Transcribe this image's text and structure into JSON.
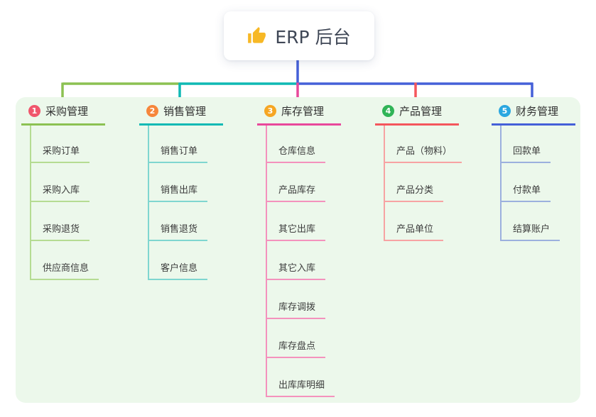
{
  "root": {
    "title": "ERP 后台",
    "icon": "thumbs-up-icon",
    "icon_color": "#f7b825",
    "stem_color": "#4560d8"
  },
  "panel": {
    "background": "#ecf8eb"
  },
  "branches": [
    {
      "number": "1",
      "title": "采购管理",
      "badge_color": "#f0566c",
      "line_color": "#8cc152",
      "child_line_color": "#b5dc92",
      "children": [
        "采购订单",
        "采购入库",
        "采购退货",
        "供应商信息"
      ]
    },
    {
      "number": "2",
      "title": "销售管理",
      "badge_color": "#f6863b",
      "line_color": "#0fb9b4",
      "child_line_color": "#7fd6d0",
      "children": [
        "销售订单",
        "销售出库",
        "销售退货",
        "客户信息"
      ]
    },
    {
      "number": "3",
      "title": "库存管理",
      "badge_color": "#f6a623",
      "line_color": "#e8489b",
      "child_line_color": "#f492bd",
      "children": [
        "仓库信息",
        "产品库存",
        "其它出库",
        "其它入库",
        "库存调拨",
        "库存盘点",
        "出库库明细"
      ]
    },
    {
      "number": "4",
      "title": "产品管理",
      "badge_color": "#30b457",
      "line_color": "#f4565c",
      "child_line_color": "#f7a3a3",
      "children": [
        "产品（物料）",
        "产品分类",
        "产品单位"
      ]
    },
    {
      "number": "5",
      "title": "财务管理",
      "badge_color": "#2ba7e0",
      "line_color": "#4560d8",
      "child_line_color": "#9cb0de",
      "children": [
        "回款单",
        "付款单",
        "结算账户"
      ]
    }
  ]
}
